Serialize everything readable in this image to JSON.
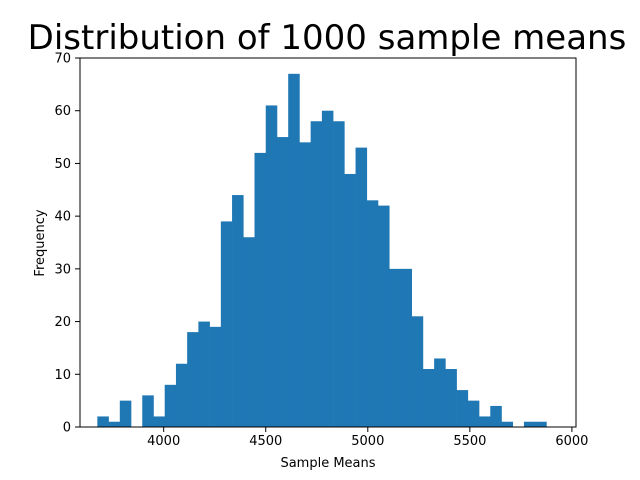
{
  "chart_data": {
    "type": "bar",
    "subtype": "histogram",
    "title": "Distribution of 1000 sample means",
    "xlabel": "Sample Means",
    "ylabel": "Frequency",
    "xlim": [
      3590,
      6020
    ],
    "ylim": [
      0,
      70
    ],
    "xticks": [
      4000,
      4500,
      5000,
      5500,
      6000
    ],
    "yticks": [
      0,
      10,
      20,
      30,
      40,
      50,
      60,
      70
    ],
    "bin_start": 3675,
    "bin_width": 55,
    "values": [
      2,
      1,
      5,
      0,
      6,
      2,
      8,
      12,
      18,
      20,
      19,
      39,
      44,
      36,
      52,
      61,
      55,
      67,
      54,
      58,
      60,
      58,
      48,
      53,
      43,
      42,
      30,
      30,
      21,
      11,
      13,
      11,
      7,
      5,
      2,
      4,
      1,
      0,
      1,
      1
    ],
    "bar_color": "#1f77b4",
    "grid": false,
    "legend": "none"
  }
}
